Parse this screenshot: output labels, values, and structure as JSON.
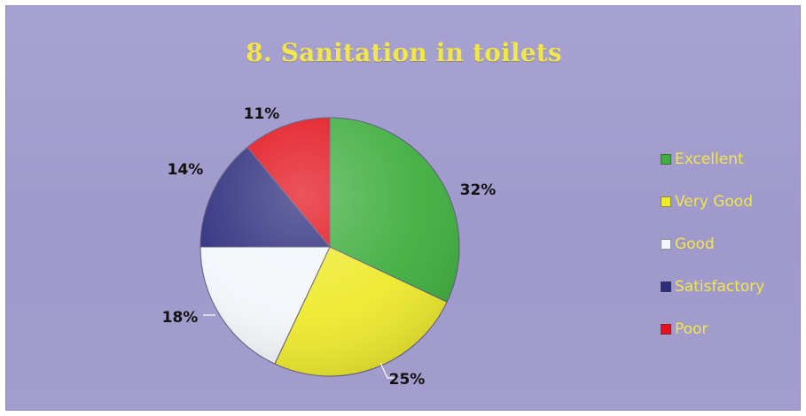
{
  "chart_data": {
    "type": "pie",
    "title": "8. Sanitation in toilets",
    "categories": [
      "Excellent",
      "Very Good",
      "Good",
      "Satisfactory",
      "Poor"
    ],
    "values": [
      32,
      25,
      18,
      14,
      11
    ],
    "value_labels": [
      "32%",
      "25%",
      "18%",
      "14%",
      "11%"
    ],
    "colors": [
      "#3fae3f",
      "#eeea2e",
      "#f4f6fb",
      "#2f2e7e",
      "#e3121c"
    ],
    "legend": "right",
    "title_color": "#f2e64b",
    "background_color": "#a7a2d1"
  }
}
